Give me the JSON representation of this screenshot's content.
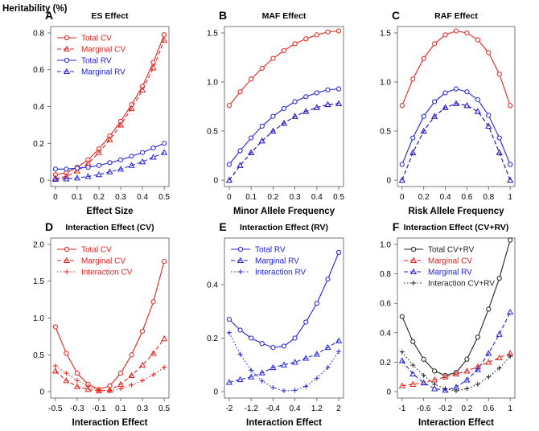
{
  "figure": {
    "ylabel": "Heritability (%)"
  },
  "colors": {
    "red": "#e8211c",
    "blue": "#1f22e0",
    "black": "#222222"
  },
  "chart_data": [
    {
      "letter": "A",
      "title": "ES Effect",
      "xlabel": "Effect Size",
      "type": "line",
      "xlim": [
        0,
        0.5
      ],
      "ylim": [
        0,
        0.8
      ],
      "xticks": [
        0,
        0.1,
        0.2,
        0.3,
        0.4,
        0.5
      ],
      "xtick_labels": [
        "0",
        "0.1",
        "0.2",
        "0.3",
        "0.4",
        "0.5"
      ],
      "yticks": [
        0,
        0.2,
        0.4,
        0.6,
        0.8
      ],
      "ytick_labels": [
        "0",
        "0.2",
        "0.4",
        "0.6",
        "0.8"
      ],
      "legend": {
        "position": "top-left"
      },
      "series": [
        {
          "name": "Total CV",
          "color": "red",
          "dash": "solid",
          "marker": "circle",
          "x": [
            0,
            0.05,
            0.1,
            0.15,
            0.2,
            0.25,
            0.3,
            0.35,
            0.4,
            0.45,
            0.5
          ],
          "values": [
            0.03,
            0.04,
            0.07,
            0.11,
            0.17,
            0.24,
            0.32,
            0.41,
            0.51,
            0.64,
            0.79
          ]
        },
        {
          "name": "Marginal CV",
          "color": "red",
          "dash": "dashed",
          "marker": "triangle",
          "x": [
            0,
            0.05,
            0.1,
            0.15,
            0.2,
            0.25,
            0.3,
            0.35,
            0.4,
            0.45,
            0.5
          ],
          "values": [
            0.01,
            0.02,
            0.05,
            0.09,
            0.15,
            0.22,
            0.3,
            0.39,
            0.49,
            0.61,
            0.76
          ]
        },
        {
          "name": "Total RV",
          "color": "blue",
          "dash": "solid",
          "marker": "circle",
          "x": [
            0,
            0.05,
            0.1,
            0.15,
            0.2,
            0.25,
            0.3,
            0.35,
            0.4,
            0.45,
            0.5
          ],
          "values": [
            0.06,
            0.06,
            0.065,
            0.07,
            0.08,
            0.095,
            0.11,
            0.13,
            0.15,
            0.175,
            0.2
          ]
        },
        {
          "name": "Marginal RV",
          "color": "blue",
          "dash": "dashed",
          "marker": "triangle",
          "x": [
            0,
            0.05,
            0.1,
            0.15,
            0.2,
            0.25,
            0.3,
            0.35,
            0.4,
            0.45,
            0.5
          ],
          "values": [
            0.005,
            0.007,
            0.012,
            0.02,
            0.03,
            0.045,
            0.06,
            0.08,
            0.1,
            0.125,
            0.15
          ]
        }
      ]
    },
    {
      "letter": "B",
      "title": "MAF Effect",
      "xlabel": "Minor Allele Frequency",
      "type": "line",
      "xlim": [
        0,
        0.5
      ],
      "ylim": [
        0,
        1.5
      ],
      "xticks": [
        0,
        0.1,
        0.2,
        0.3,
        0.4,
        0.5
      ],
      "xtick_labels": [
        "0",
        "0.1",
        "0.2",
        "0.3",
        "0.4",
        "0.5"
      ],
      "yticks": [
        0,
        0.5,
        1.0,
        1.5
      ],
      "ytick_labels": [
        "0",
        "0.5",
        "1.0",
        "1.5"
      ],
      "series": [
        {
          "name": "Total CV",
          "color": "red",
          "dash": "solid",
          "marker": "circle",
          "x": [
            0,
            0.05,
            0.1,
            0.15,
            0.2,
            0.25,
            0.3,
            0.35,
            0.4,
            0.45,
            0.5
          ],
          "values": [
            0.76,
            0.9,
            1.03,
            1.14,
            1.24,
            1.32,
            1.39,
            1.44,
            1.48,
            1.51,
            1.52
          ]
        },
        {
          "name": "Total RV",
          "color": "blue",
          "dash": "solid",
          "marker": "circle",
          "x": [
            0,
            0.05,
            0.1,
            0.15,
            0.2,
            0.25,
            0.3,
            0.35,
            0.4,
            0.45,
            0.5
          ],
          "values": [
            0.16,
            0.3,
            0.43,
            0.55,
            0.65,
            0.73,
            0.8,
            0.85,
            0.89,
            0.92,
            0.93
          ]
        },
        {
          "name": "Marginal CV",
          "color": "red",
          "dash": "dashed",
          "marker": "triangle",
          "x": [
            0,
            0.05,
            0.1,
            0.15,
            0.2,
            0.25,
            0.3,
            0.35,
            0.4,
            0.45,
            0.5
          ],
          "values": [
            0.0,
            0.15,
            0.28,
            0.4,
            0.5,
            0.58,
            0.65,
            0.7,
            0.74,
            0.77,
            0.78
          ]
        },
        {
          "name": "Marginal RV",
          "color": "blue",
          "dash": "dashed",
          "marker": "triangle",
          "x": [
            0,
            0.05,
            0.1,
            0.15,
            0.2,
            0.25,
            0.3,
            0.35,
            0.4,
            0.45,
            0.5
          ],
          "values": [
            0.0,
            0.15,
            0.28,
            0.4,
            0.5,
            0.58,
            0.65,
            0.7,
            0.74,
            0.77,
            0.78
          ]
        }
      ]
    },
    {
      "letter": "C",
      "title": "RAF Effect",
      "xlabel": "Risk Allele Frequency",
      "type": "line",
      "xlim": [
        0,
        1
      ],
      "ylim": [
        0,
        1.5
      ],
      "xticks": [
        0,
        0.2,
        0.4,
        0.6,
        0.8,
        1
      ],
      "xtick_labels": [
        "0",
        "0.2",
        "0.4",
        "0.6",
        "0.8",
        "1"
      ],
      "yticks": [
        0,
        0.5,
        1.0,
        1.5
      ],
      "ytick_labels": [
        "0",
        "0.5",
        "1.0",
        "1.5"
      ],
      "series": [
        {
          "name": "Total CV",
          "color": "red",
          "dash": "solid",
          "marker": "circle",
          "x": [
            0,
            0.1,
            0.2,
            0.3,
            0.4,
            0.5,
            0.6,
            0.7,
            0.8,
            0.9,
            1.0
          ],
          "values": [
            0.76,
            1.03,
            1.24,
            1.39,
            1.48,
            1.52,
            1.5,
            1.43,
            1.3,
            1.08,
            0.76
          ]
        },
        {
          "name": "Total RV",
          "color": "blue",
          "dash": "solid",
          "marker": "circle",
          "x": [
            0,
            0.1,
            0.2,
            0.3,
            0.4,
            0.5,
            0.6,
            0.7,
            0.8,
            0.9,
            1.0
          ],
          "values": [
            0.16,
            0.43,
            0.65,
            0.8,
            0.89,
            0.93,
            0.9,
            0.82,
            0.66,
            0.43,
            0.16
          ]
        },
        {
          "name": "Marginal CV",
          "color": "red",
          "dash": "dashed",
          "marker": "triangle",
          "x": [
            0,
            0.1,
            0.2,
            0.3,
            0.4,
            0.5,
            0.6,
            0.7,
            0.8,
            0.9,
            1.0
          ],
          "values": [
            0.0,
            0.28,
            0.5,
            0.65,
            0.74,
            0.78,
            0.76,
            0.7,
            0.55,
            0.28,
            0.0
          ]
        },
        {
          "name": "Marginal RV",
          "color": "blue",
          "dash": "dashed",
          "marker": "triangle",
          "x": [
            0,
            0.1,
            0.2,
            0.3,
            0.4,
            0.5,
            0.6,
            0.7,
            0.8,
            0.9,
            1.0
          ],
          "values": [
            0.0,
            0.28,
            0.5,
            0.65,
            0.74,
            0.78,
            0.76,
            0.7,
            0.55,
            0.28,
            0.0
          ]
        }
      ]
    },
    {
      "letter": "D",
      "title": "Interaction Effect (CV)",
      "xlabel": "Interaction Effect",
      "type": "line",
      "xlim": [
        -0.5,
        0.5
      ],
      "ylim": [
        0,
        2.0
      ],
      "xticks": [
        -0.5,
        -0.3,
        -0.1,
        0.1,
        0.3,
        0.5
      ],
      "xtick_labels": [
        "-0.5",
        "-0.3",
        "-0.1",
        "0.1",
        "0.3",
        "0.5"
      ],
      "yticks": [
        0,
        0.5,
        1.0,
        1.5,
        2.0
      ],
      "ytick_labels": [
        "0",
        "0.5",
        "1.0",
        "1.5",
        "2.0"
      ],
      "legend": {
        "position": "top-left"
      },
      "series": [
        {
          "name": "Total CV",
          "color": "red",
          "dash": "solid",
          "marker": "circle",
          "x": [
            -0.5,
            -0.4,
            -0.3,
            -0.2,
            -0.1,
            0,
            0.1,
            0.2,
            0.3,
            0.4,
            0.5
          ],
          "values": [
            0.88,
            0.52,
            0.25,
            0.1,
            0.03,
            0.08,
            0.25,
            0.5,
            0.82,
            1.22,
            1.77
          ]
        },
        {
          "name": "Marginal CV",
          "color": "red",
          "dash": "dashed",
          "marker": "triangle",
          "x": [
            -0.5,
            -0.4,
            -0.3,
            -0.2,
            -0.1,
            0,
            0.1,
            0.2,
            0.3,
            0.4,
            0.5
          ],
          "values": [
            0.28,
            0.15,
            0.07,
            0.03,
            0.01,
            0.02,
            0.1,
            0.22,
            0.36,
            0.52,
            0.72
          ]
        },
        {
          "name": "Interaction CV",
          "color": "red",
          "dash": "dotted",
          "marker": "plus",
          "x": [
            -0.5,
            -0.4,
            -0.3,
            -0.2,
            -0.1,
            0,
            0.1,
            0.2,
            0.3,
            0.4,
            0.5
          ],
          "values": [
            0.35,
            0.25,
            0.15,
            0.07,
            0.02,
            0.01,
            0.04,
            0.09,
            0.15,
            0.23,
            0.33
          ]
        }
      ]
    },
    {
      "letter": "E",
      "title": "Interaction Effect (RV)",
      "xlabel": "Interaction Effect",
      "type": "line",
      "xlim": [
        -2,
        2
      ],
      "ylim": [
        0,
        0.55
      ],
      "xticks": [
        -2,
        -1.2,
        -0.4,
        0.4,
        1.2,
        2
      ],
      "xtick_labels": [
        "-2",
        "-1.2",
        "-0.4",
        "0.4",
        "1.2",
        "2"
      ],
      "yticks": [
        0,
        0.2,
        0.4
      ],
      "ytick_labels": [
        "0",
        "0.2",
        "0.4"
      ],
      "legend": {
        "position": "top-left"
      },
      "series": [
        {
          "name": "Total RV",
          "color": "blue",
          "dash": "solid",
          "marker": "circle",
          "x": [
            -2,
            -1.6,
            -1.2,
            -0.8,
            -0.4,
            0,
            0.4,
            0.8,
            1.2,
            1.6,
            2
          ],
          "values": [
            0.27,
            0.23,
            0.2,
            0.18,
            0.165,
            0.17,
            0.2,
            0.26,
            0.33,
            0.42,
            0.52
          ]
        },
        {
          "name": "Marginal RV",
          "color": "blue",
          "dash": "dashed",
          "marker": "triangle",
          "x": [
            -2,
            -1.6,
            -1.2,
            -0.8,
            -0.4,
            0,
            0.4,
            0.8,
            1.2,
            1.6,
            2
          ],
          "values": [
            0.035,
            0.045,
            0.055,
            0.07,
            0.09,
            0.1,
            0.11,
            0.125,
            0.14,
            0.165,
            0.19
          ]
        },
        {
          "name": "Interaction RV",
          "color": "blue",
          "dash": "dotted",
          "marker": "plus",
          "x": [
            -2,
            -1.6,
            -1.2,
            -0.8,
            -0.4,
            0,
            0.4,
            0.8,
            1.2,
            1.6,
            2
          ],
          "values": [
            0.22,
            0.14,
            0.08,
            0.04,
            0.015,
            0.003,
            0.005,
            0.02,
            0.05,
            0.09,
            0.15
          ]
        }
      ]
    },
    {
      "letter": "F",
      "title": "Interaction Effect (CV+RV)",
      "xlabel": "Interaction Effect",
      "type": "line",
      "xlim": [
        -1,
        1
      ],
      "ylim": [
        0,
        1.0
      ],
      "xticks": [
        -1,
        -0.6,
        -0.2,
        0.2,
        0.6,
        1
      ],
      "xtick_labels": [
        "-1",
        "-0.6",
        "-0.2",
        "0.2",
        "0.6",
        "1"
      ],
      "yticks": [
        0,
        0.2,
        0.4,
        0.6,
        0.8,
        1.0
      ],
      "ytick_labels": [
        "0",
        "0.2",
        "0.4",
        "0.6",
        "0.8",
        "1.0"
      ],
      "legend": {
        "position": "top-left"
      },
      "series": [
        {
          "name": "Total CV+RV",
          "color": "black",
          "dash": "solid",
          "marker": "circle",
          "x": [
            -1,
            -0.8,
            -0.6,
            -0.4,
            -0.2,
            0,
            0.2,
            0.4,
            0.6,
            0.8,
            1
          ],
          "values": [
            0.51,
            0.34,
            0.22,
            0.14,
            0.11,
            0.13,
            0.22,
            0.37,
            0.56,
            0.77,
            1.03
          ]
        },
        {
          "name": "Marginal CV",
          "color": "red",
          "dash": "dashed",
          "marker": "triangle",
          "x": [
            -1,
            -0.8,
            -0.6,
            -0.4,
            -0.2,
            0,
            0.2,
            0.4,
            0.6,
            0.8,
            1
          ],
          "values": [
            0.04,
            0.05,
            0.06,
            0.08,
            0.1,
            0.12,
            0.14,
            0.17,
            0.2,
            0.23,
            0.26
          ]
        },
        {
          "name": "Marginal RV",
          "color": "blue",
          "dash": "dashed",
          "marker": "triangle",
          "x": [
            -1,
            -0.8,
            -0.6,
            -0.4,
            -0.2,
            0,
            0.2,
            0.4,
            0.6,
            0.8,
            1
          ],
          "values": [
            0.21,
            0.12,
            0.06,
            0.02,
            0.01,
            0.03,
            0.08,
            0.15,
            0.26,
            0.39,
            0.54
          ]
        },
        {
          "name": "Interaction CV+RV",
          "color": "black",
          "dash": "dotted",
          "marker": "plus",
          "x": [
            -1,
            -0.8,
            -0.6,
            -0.4,
            -0.2,
            0,
            0.2,
            0.4,
            0.6,
            0.8,
            1
          ],
          "values": [
            0.27,
            0.18,
            0.11,
            0.05,
            0.02,
            0.005,
            0.02,
            0.05,
            0.1,
            0.16,
            0.24
          ]
        }
      ]
    }
  ]
}
